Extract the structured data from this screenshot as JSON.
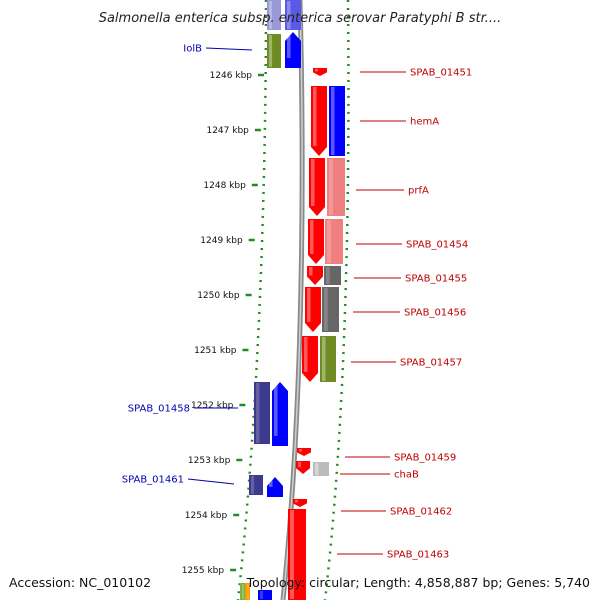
{
  "title": "Salmonella enterica subsp. enterica serovar Paratyphi B str....",
  "footer": {
    "accession": "Accession: NC_010102",
    "topology": "Topology: circular; Length: 4,858,887 bp; Genes: 5,740"
  },
  "colors": {
    "forward_label": "#0000b4",
    "reverse_label": "#c00000",
    "red": "#ff0000",
    "blue": "#0000ff",
    "navy": "#3c3a8c",
    "olive": "#6e8c22",
    "salmon": "#f08080",
    "gray": "#666666",
    "light_gray": "#bbbbbb",
    "backbone": "#8a8a8a",
    "dots": "#228b22"
  },
  "scale": {
    "unit": "kbp",
    "ticks": [
      {
        "value": 1246,
        "label": "1246 kbp"
      },
      {
        "value": 1247,
        "label": "1247 kbp"
      },
      {
        "value": 1248,
        "label": "1248 kbp"
      },
      {
        "value": 1249,
        "label": "1249 kbp"
      },
      {
        "value": 1250,
        "label": "1250 kbp"
      },
      {
        "value": 1251,
        "label": "1251 kbp"
      },
      {
        "value": 1252,
        "label": "1252 kbp"
      },
      {
        "value": 1253,
        "label": "1253 kbp"
      },
      {
        "value": 1254,
        "label": "1254 kbp"
      },
      {
        "value": 1255,
        "label": "1255 kbp"
      }
    ]
  },
  "labels": [
    {
      "id": "iolB",
      "text": "IolB",
      "strand": "forward",
      "kbp": 1245.7
    },
    {
      "id": "spab-01451",
      "text": "SPAB_01451",
      "strand": "reverse",
      "kbp": 1246.0
    },
    {
      "id": "hema",
      "text": "hemA",
      "strand": "reverse",
      "kbp": 1246.8
    },
    {
      "id": "prfa",
      "text": "prfA",
      "strand": "reverse",
      "kbp": 1248.05
    },
    {
      "id": "spab-01454",
      "text": "SPAB_01454",
      "strand": "reverse",
      "kbp": 1249.05
    },
    {
      "id": "spab-01455",
      "text": "SPAB_01455",
      "strand": "reverse",
      "kbp": 1249.7
    },
    {
      "id": "spab-01456",
      "text": "SPAB_01456",
      "strand": "reverse",
      "kbp": 1250.3
    },
    {
      "id": "spab-01457",
      "text": "SPAB_01457",
      "strand": "reverse",
      "kbp": 1251.2
    },
    {
      "id": "spab-01458",
      "text": "SPAB_01458",
      "strand": "forward",
      "kbp": 1252.0
    },
    {
      "id": "spab-01459",
      "text": "SPAB_01459",
      "strand": "reverse",
      "kbp": 1252.9
    },
    {
      "id": "chab",
      "text": "chaB",
      "strand": "reverse",
      "kbp": 1253.2
    },
    {
      "id": "spab-01461",
      "text": "SPAB_01461",
      "strand": "forward",
      "kbp": 1253.3
    },
    {
      "id": "spab-01462",
      "text": "SPAB_01462",
      "strand": "reverse",
      "kbp": 1253.9
    },
    {
      "id": "spab-01463",
      "text": "SPAB_01463",
      "strand": "reverse",
      "kbp": 1254.6
    }
  ]
}
